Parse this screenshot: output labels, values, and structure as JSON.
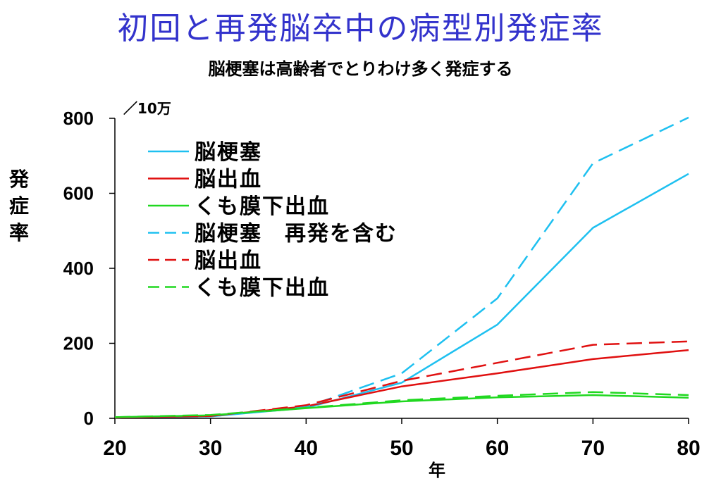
{
  "title": "初回と再発脳卒中の病型別発症率",
  "subtitle": "脳梗塞は高齢者でとりわけ多く発症する",
  "chart_data": {
    "type": "line",
    "ylabel": "発症率",
    "y_unit": "／10万",
    "xlabel": "年",
    "xlim": [
      20,
      80
    ],
    "ylim": [
      0,
      800
    ],
    "x_ticks": [
      20,
      30,
      40,
      50,
      60,
      70,
      80
    ],
    "y_ticks": [
      0,
      200,
      400,
      600,
      800
    ],
    "grid": false,
    "legend_position": "top-left",
    "series": [
      {
        "name": "脳梗塞",
        "color": "#1ec0f0",
        "style": "solid",
        "x": [
          20,
          30,
          40,
          50,
          60,
          70,
          80
        ],
        "y": [
          2,
          5,
          28,
          95,
          250,
          508,
          652
        ]
      },
      {
        "name": "脳出血",
        "color": "#e01010",
        "style": "solid",
        "x": [
          20,
          30,
          40,
          50,
          60,
          70,
          80
        ],
        "y": [
          2,
          6,
          32,
          85,
          120,
          158,
          182
        ]
      },
      {
        "name": "くも膜下出血",
        "color": "#20d820",
        "style": "solid",
        "x": [
          20,
          30,
          40,
          50,
          60,
          70,
          80
        ],
        "y": [
          3,
          8,
          27,
          45,
          56,
          62,
          55
        ]
      },
      {
        "name": "脳梗塞　再発を含む",
        "color": "#1ec0f0",
        "style": "dashed",
        "x": [
          20,
          30,
          40,
          50,
          60,
          70,
          80
        ],
        "y": [
          2,
          5,
          30,
          120,
          320,
          680,
          802
        ]
      },
      {
        "name": "脳出血",
        "color": "#e01010",
        "style": "dashed",
        "x": [
          20,
          30,
          40,
          50,
          60,
          70,
          80
        ],
        "y": [
          2,
          6,
          35,
          100,
          148,
          196,
          205
        ]
      },
      {
        "name": "くも膜下出血",
        "color": "#20d820",
        "style": "dashed",
        "x": [
          20,
          30,
          40,
          50,
          60,
          70,
          80
        ],
        "y": [
          3,
          9,
          28,
          48,
          60,
          70,
          62
        ]
      }
    ]
  }
}
